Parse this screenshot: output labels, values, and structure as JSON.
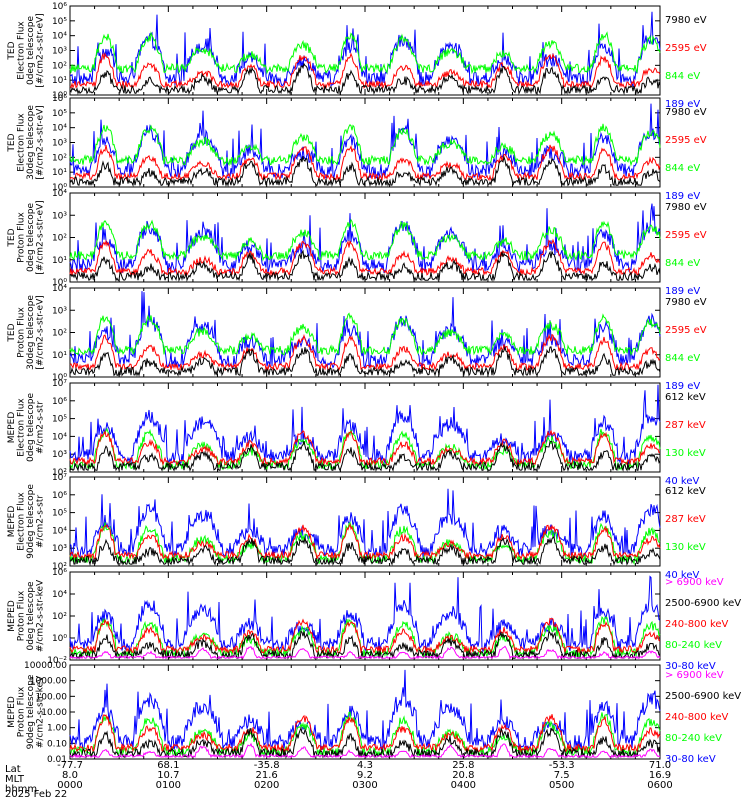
{
  "colors": {
    "blue": "#0000ff",
    "red": "#ff0000",
    "green": "#00ff00",
    "black": "#000000",
    "magenta": "#ff00ff"
  },
  "chart_data": [
    {
      "type": "line",
      "ylabel": [
        "TED",
        "Electron Flux",
        "0deg telescope",
        "[#/cm2-s-str-eV]"
      ],
      "yscale": "log",
      "ylim": [
        1,
        1000000
      ],
      "ytick_labels": [
        "10⁰",
        "10¹",
        "10²",
        "10³",
        "10⁴",
        "10⁵",
        "10⁶"
      ],
      "series": [
        {
          "name": "7980 eV",
          "color": "#000000"
        },
        {
          "name": "2595 eV",
          "color": "#ff0000"
        },
        {
          "name": "844 eV",
          "color": "#00ff00"
        },
        {
          "name": "189 eV",
          "color": "#0000ff"
        }
      ]
    },
    {
      "type": "line",
      "ylabel": [
        "TED",
        "Electron Flux",
        "30deg telescope",
        "[#/cm2-s-str-eV]"
      ],
      "yscale": "log",
      "ylim": [
        1,
        1000000
      ],
      "ytick_labels": [
        "10⁰",
        "10¹",
        "10²",
        "10³",
        "10⁴",
        "10⁵",
        "10⁶"
      ],
      "series": [
        {
          "name": "7980 eV",
          "color": "#000000"
        },
        {
          "name": "2595 eV",
          "color": "#ff0000"
        },
        {
          "name": "844 eV",
          "color": "#00ff00"
        },
        {
          "name": "189 eV",
          "color": "#0000ff"
        }
      ]
    },
    {
      "type": "line",
      "ylabel": [
        "TED",
        "Proton Flux",
        "0deg telescope",
        "[#/cm2-s-str-eV]"
      ],
      "yscale": "log",
      "ylim": [
        1,
        100000
      ],
      "ytick_labels": [
        "10⁰",
        "10¹",
        "10²",
        "10³",
        "10⁴"
      ],
      "series": [
        {
          "name": "7980 eV",
          "color": "#000000"
        },
        {
          "name": "2595 eV",
          "color": "#ff0000"
        },
        {
          "name": "844 eV",
          "color": "#00ff00"
        },
        {
          "name": "189 eV",
          "color": "#0000ff"
        }
      ]
    },
    {
      "type": "line",
      "ylabel": [
        "TED",
        "Proton Flux",
        "30deg telescope",
        "[#/cm2-s-str-eV]"
      ],
      "yscale": "log",
      "ylim": [
        1,
        100000
      ],
      "ytick_labels": [
        "10⁰",
        "10¹",
        "10²",
        "10³",
        "10⁴"
      ],
      "series": [
        {
          "name": "7980 eV",
          "color": "#000000"
        },
        {
          "name": "2595 eV",
          "color": "#ff0000"
        },
        {
          "name": "844 eV",
          "color": "#00ff00"
        },
        {
          "name": "189 eV",
          "color": "#0000ff"
        }
      ]
    },
    {
      "type": "line",
      "ylabel": [
        "MEPED",
        "Electron Flux",
        "0deg telescope",
        "#/cm2-s-str"
      ],
      "yscale": "log",
      "ylim": [
        100,
        10000000
      ],
      "ytick_labels": [
        "10²",
        "10³",
        "10⁴",
        "10⁵",
        "10⁶",
        "10⁷"
      ],
      "series": [
        {
          "name": "612 keV",
          "color": "#000000"
        },
        {
          "name": "287 keV",
          "color": "#ff0000"
        },
        {
          "name": "130 keV",
          "color": "#00ff00"
        },
        {
          "name": "40 keV",
          "color": "#0000ff"
        }
      ]
    },
    {
      "type": "line",
      "ylabel": [
        "MEPED",
        "Electron Flux",
        "90deg telescope",
        "#/cm2-s-str"
      ],
      "yscale": "log",
      "ylim": [
        100,
        10000000
      ],
      "ytick_labels": [
        "10²",
        "10³",
        "10⁴",
        "10⁵",
        "10⁶",
        "10⁷"
      ],
      "series": [
        {
          "name": "612 keV",
          "color": "#000000"
        },
        {
          "name": "287 keV",
          "color": "#ff0000"
        },
        {
          "name": "130 keV",
          "color": "#00ff00"
        },
        {
          "name": "40 keV",
          "color": "#0000ff"
        }
      ]
    },
    {
      "type": "line",
      "ylabel": [
        "MEPED",
        "Proton Flux",
        "0deg telescope",
        "#/cm2-s-str-keV"
      ],
      "yscale": "log",
      "ylim": [
        0.01,
        1000000
      ],
      "ytick_labels": [
        "10⁻²",
        "10⁰",
        "10²",
        "10⁴",
        "10⁶"
      ],
      "series": [
        {
          "name": "> 6900 keV",
          "color": "#ff00ff"
        },
        {
          "name": "2500-6900 keV",
          "color": "#000000"
        },
        {
          "name": "240-800 keV",
          "color": "#ff0000"
        },
        {
          "name": "80-240 keV",
          "color": "#00ff00"
        },
        {
          "name": "30-80 keV",
          "color": "#0000ff"
        }
      ]
    },
    {
      "type": "line",
      "ylabel": [
        "MEPED",
        "Proton Flux",
        "90deg telescope",
        "#/cm2-s-str-keV"
      ],
      "yscale": "log",
      "ylim": [
        0.01,
        10000
      ],
      "ytick_labels": [
        "0.01",
        "0.10",
        "1.00",
        "10.00",
        "100.00",
        "1000.00",
        "10000.00"
      ],
      "series": [
        {
          "name": "> 6900 keV",
          "color": "#ff00ff"
        },
        {
          "name": "2500-6900 keV",
          "color": "#000000"
        },
        {
          "name": "240-800 keV",
          "color": "#ff0000"
        },
        {
          "name": "80-240 keV",
          "color": "#00ff00"
        },
        {
          "name": "30-80 keV",
          "color": "#0000ff"
        }
      ]
    }
  ],
  "xaxis": {
    "row_labels": [
      "Lat",
      "MLT",
      "hhmm",
      "2025 Feb 22"
    ],
    "ticks": [
      {
        "lat": "-77.7",
        "mlt": "8.0",
        "hhmm": "0000"
      },
      {
        "lat": "68.1",
        "mlt": "10.7",
        "hhmm": "0100"
      },
      {
        "lat": "-35.8",
        "mlt": "21.6",
        "hhmm": "0200"
      },
      {
        "lat": "4.3",
        "mlt": "9.2",
        "hhmm": "0300"
      },
      {
        "lat": "25.8",
        "mlt": "20.8",
        "hhmm": "0400"
      },
      {
        "lat": "-53.3",
        "mlt": "7.5",
        "hhmm": "0500"
      },
      {
        "lat": "71.0",
        "mlt": "16.9",
        "hhmm": "0600"
      }
    ]
  }
}
